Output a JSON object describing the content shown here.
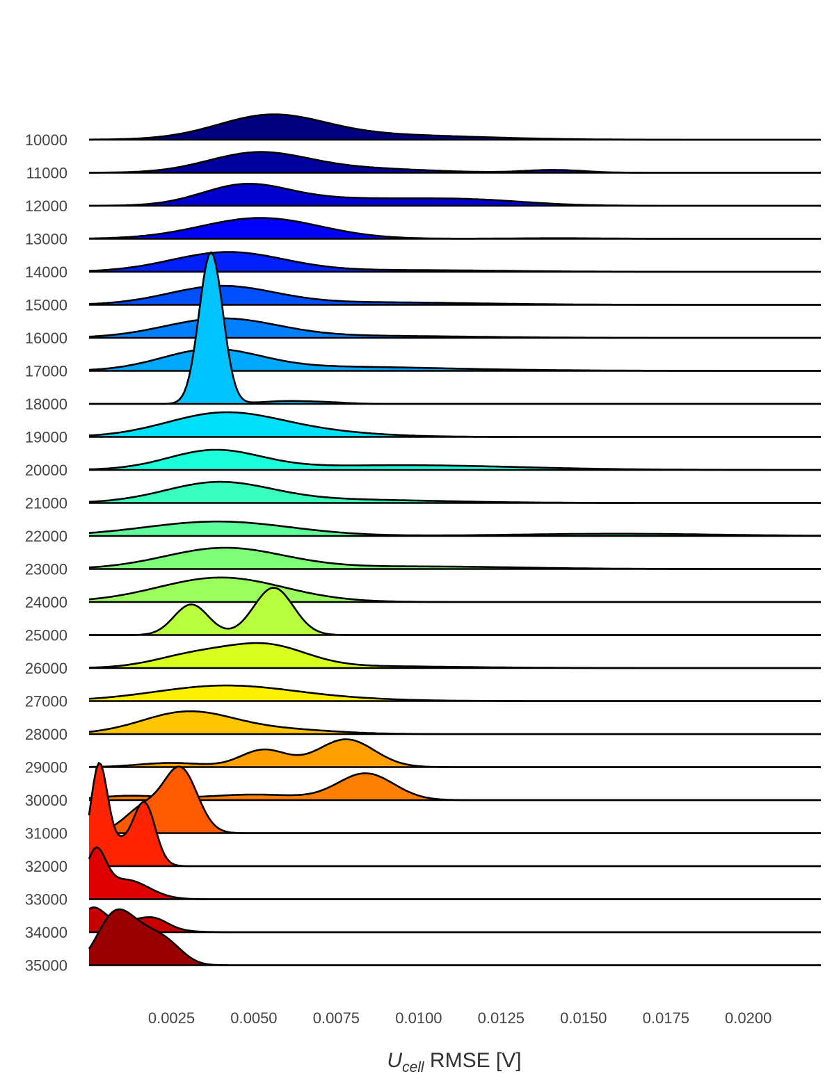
{
  "chart_data": {
    "type": "ridgeline",
    "xlabel_main": "U",
    "xlabel_sub": "cell",
    "xlabel_rest": " RMSE [V]",
    "x_ticks": [
      "0.0025",
      "0.0050",
      "0.0075",
      "0.0100",
      "0.0125",
      "0.0150",
      "0.0175",
      "0.0200"
    ],
    "x_tick_values": [
      0.0025,
      0.005,
      0.0075,
      0.01,
      0.0125,
      0.015,
      0.0175,
      0.02
    ],
    "xlim": [
      0.0,
      0.0222
    ],
    "grid": false,
    "legend": "none",
    "series": [
      {
        "name": "10000",
        "color": "#000080",
        "peaks": [
          [
            0.0055,
            0.0016,
            0.8
          ],
          [
            0.0085,
            0.003,
            0.18
          ]
        ],
        "ymax": 1.0
      },
      {
        "name": "11000",
        "color": "#00009f",
        "peaks": [
          [
            0.0051,
            0.0015,
            0.7
          ],
          [
            0.0082,
            0.002,
            0.15
          ],
          [
            0.0141,
            0.0009,
            0.1
          ]
        ],
        "ymax": 1.0
      },
      {
        "name": "12000",
        "color": "#0000d0",
        "peaks": [
          [
            0.0047,
            0.0013,
            0.68
          ],
          [
            0.0075,
            0.0022,
            0.24
          ],
          [
            0.0115,
            0.0018,
            0.2
          ]
        ],
        "ymax": 1.0
      },
      {
        "name": "13000",
        "color": "#0000ff",
        "peaks": [
          [
            0.0052,
            0.0018,
            0.75
          ],
          [
            0.0142,
            0.0015,
            0.02
          ]
        ],
        "ymax": 1.0
      },
      {
        "name": "14000",
        "color": "#0020ff",
        "peaks": [
          [
            0.0042,
            0.0017,
            0.7
          ],
          [
            0.0095,
            0.003,
            0.06
          ]
        ],
        "ymax": 1.0
      },
      {
        "name": "15000",
        "color": "#0050ff",
        "peaks": [
          [
            0.004,
            0.0016,
            0.65
          ],
          [
            0.0085,
            0.0032,
            0.09
          ]
        ],
        "ymax": 1.0
      },
      {
        "name": "16000",
        "color": "#0080ff",
        "peaks": [
          [
            0.004,
            0.0017,
            0.68
          ],
          [
            0.0085,
            0.003,
            0.07
          ]
        ],
        "ymax": 1.0
      },
      {
        "name": "17000",
        "color": "#00a8ff",
        "peaks": [
          [
            0.0037,
            0.0015,
            0.75
          ],
          [
            0.0075,
            0.0025,
            0.12
          ],
          [
            0.011,
            0.003,
            0.04
          ]
        ],
        "ymax": 1.0
      },
      {
        "name": "18000",
        "color": "#00c4ff",
        "peaks": [
          [
            0.0037,
            0.00036,
            5.45
          ],
          [
            0.006,
            0.0008,
            0.1
          ],
          [
            0.0073,
            0.0006,
            0.04
          ]
        ],
        "ymax": 1.0
      },
      {
        "name": "19000",
        "color": "#00e0f8",
        "peaks": [
          [
            0.004,
            0.0017,
            0.8
          ],
          [
            0.0065,
            0.002,
            0.18
          ]
        ],
        "ymax": 1.0
      },
      {
        "name": "20000",
        "color": "#1cffda",
        "peaks": [
          [
            0.0038,
            0.0014,
            0.68
          ],
          [
            0.0095,
            0.0035,
            0.17
          ]
        ],
        "ymax": 1.0
      },
      {
        "name": "21000",
        "color": "#38ffbe",
        "peaks": [
          [
            0.0039,
            0.0016,
            0.7
          ],
          [
            0.0075,
            0.003,
            0.12
          ]
        ],
        "ymax": 1.0
      },
      {
        "name": "22000",
        "color": "#5cff9a",
        "peaks": [
          [
            0.0039,
            0.0022,
            0.52
          ],
          [
            0.016,
            0.003,
            0.08
          ]
        ],
        "ymax": 1.0
      },
      {
        "name": "23000",
        "color": "#7eff78",
        "peaks": [
          [
            0.0041,
            0.0018,
            0.75
          ],
          [
            0.01,
            0.003,
            0.09
          ]
        ],
        "ymax": 1.0
      },
      {
        "name": "24000",
        "color": "#9aff5c",
        "peaks": [
          [
            0.004,
            0.0019,
            0.88
          ]
        ],
        "ymax": 1.0
      },
      {
        "name": "25000",
        "color": "#b8ff3e",
        "peaks": [
          [
            0.0031,
            0.00052,
            1.1
          ],
          [
            0.0056,
            0.0006,
            1.7
          ]
        ],
        "ymax": 1.0
      },
      {
        "name": "26000",
        "color": "#d8ff1e",
        "peaks": [
          [
            0.0032,
            0.0012,
            0.45
          ],
          [
            0.0054,
            0.0012,
            0.75
          ],
          [
            0.008,
            0.003,
            0.07
          ]
        ],
        "ymax": 1.0
      },
      {
        "name": "27000",
        "color": "#fff000",
        "peaks": [
          [
            0.0041,
            0.0021,
            0.55
          ],
          [
            0.0077,
            0.002,
            0.05
          ]
        ],
        "ymax": 1.0
      },
      {
        "name": "28000",
        "color": "#ffc600",
        "peaks": [
          [
            0.003,
            0.0014,
            0.8
          ],
          [
            0.006,
            0.0015,
            0.15
          ]
        ],
        "ymax": 1.0
      },
      {
        "name": "29000",
        "color": "#ffa000",
        "peaks": [
          [
            0.0025,
            0.001,
            0.15
          ],
          [
            0.0053,
            0.0007,
            0.62
          ],
          [
            0.0078,
            0.00085,
            1.0
          ]
        ],
        "ymax": 1.0
      },
      {
        "name": "30000",
        "color": "#ff8000",
        "peaks": [
          [
            0.0012,
            0.001,
            0.15
          ],
          [
            0.005,
            0.0015,
            0.2
          ],
          [
            0.0084,
            0.00085,
            0.95
          ]
        ],
        "ymax": 1.0
      },
      {
        "name": "31000",
        "color": "#ff5a00",
        "peaks": [
          [
            0.0028,
            0.0005,
            2.2
          ],
          [
            0.0017,
            0.0006,
            0.95
          ]
        ],
        "ymax": 1.0
      },
      {
        "name": "32000",
        "color": "#ff2400",
        "peaks": [
          [
            0.0003,
            0.00025,
            3.2
          ],
          [
            0.0017,
            0.00032,
            1.95
          ],
          [
            0.0009,
            0.0006,
            0.85
          ]
        ],
        "ymax": 1.0
      },
      {
        "name": "33000",
        "color": "#dc0000",
        "peaks": [
          [
            0.0002,
            0.0003,
            1.55
          ],
          [
            0.0011,
            0.0007,
            0.7
          ]
        ],
        "ymax": 1.0
      },
      {
        "name": "34000",
        "color": "#c80000",
        "peaks": [
          [
            0.0001,
            0.00035,
            0.7
          ],
          [
            0.0012,
            0.0009,
            0.4
          ],
          [
            0.002,
            0.0004,
            0.25
          ]
        ],
        "ymax": 1.0
      },
      {
        "name": "35000",
        "color": "#9a0000",
        "peaks": [
          [
            0.0007,
            0.0005,
            1.45
          ],
          [
            0.0015,
            0.0006,
            1.1
          ],
          [
            0.0024,
            0.0005,
            0.6
          ]
        ],
        "ymax": 1.0
      }
    ]
  }
}
